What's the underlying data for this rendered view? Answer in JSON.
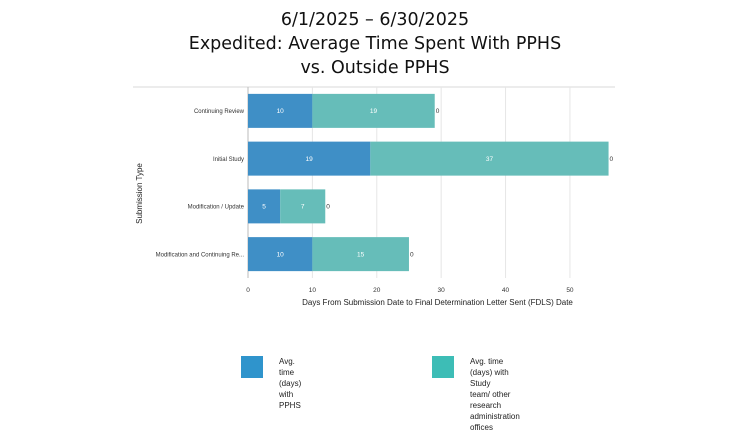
{
  "title_lines": [
    "6/1/2025 – 6/30/2025",
    "Expedited: Average Time Spent With PPHS",
    "vs. Outside PPHS"
  ],
  "colors": {
    "pphs": "#3f8fc6",
    "outside": "#66bdb9",
    "legend_pphs": "#2f94cc",
    "legend_outside": "#3dbdb6"
  },
  "legend": [
    {
      "label_lines": [
        "Avg. time (days)",
        "with PPHS"
      ]
    },
    {
      "label_lines": [
        "Avg. time (days) with Study",
        "team/ other research",
        "administration offices"
      ]
    }
  ],
  "chart_data": {
    "type": "bar",
    "orientation": "horizontal",
    "stacked": true,
    "categories": [
      "Continuing Review",
      "Initial Study",
      "Modification / Update",
      "Modification and Continuing Re..."
    ],
    "series": [
      {
        "values": [
          10,
          19,
          5,
          10
        ]
      },
      {
        "values": [
          19,
          37,
          7,
          15
        ]
      }
    ],
    "end_labels": [
      "0",
      "0",
      "0",
      "0"
    ],
    "xlabel": "Days From Submission Date to Final Determination Letter Sent (FDLS) Date",
    "ylabel": "Submission Type",
    "xlim": [
      0,
      57
    ],
    "xticks": [
      0,
      10,
      20,
      30,
      40,
      50
    ],
    "grid": true,
    "legend_position": "bottom"
  }
}
